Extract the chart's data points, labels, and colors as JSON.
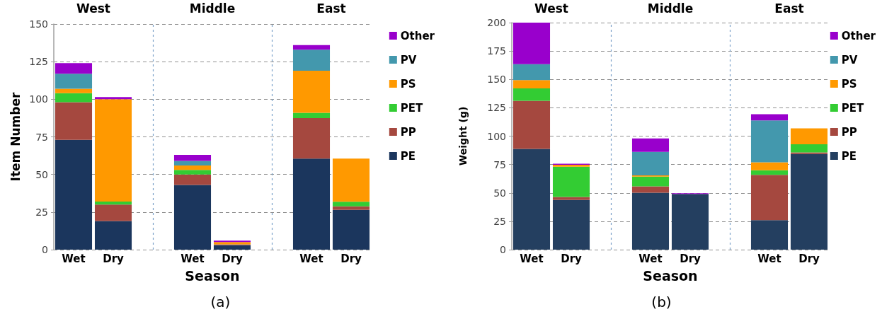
{
  "chart_data": [
    {
      "type": "bar",
      "title": "(a)",
      "xlabel": "Season",
      "ylabel": "Item Number",
      "annotations": [
        "West",
        "Middle",
        "East"
      ],
      "categories": [
        "Wet",
        "Dry",
        null,
        "Wet",
        "Dry",
        null,
        "Wet",
        "Dry"
      ],
      "stacked": true,
      "ylim": [
        0,
        150
      ],
      "yticks": [
        0,
        25,
        50,
        75,
        100,
        125,
        150
      ],
      "grid": true,
      "legend": "right",
      "series": [
        {
          "name": "PE",
          "color": "#1b365d",
          "values": [
            73,
            19,
            null,
            43,
            3,
            null,
            60.5,
            26.5
          ]
        },
        {
          "name": "PP",
          "color": "#a5483f",
          "values": [
            25,
            11,
            null,
            7,
            0.5,
            null,
            27,
            2.3
          ]
        },
        {
          "name": "PET",
          "color": "#33cc33",
          "values": [
            6,
            2,
            null,
            3,
            null,
            null,
            3.5,
            3
          ]
        },
        {
          "name": "PS",
          "color": "#ff9900",
          "values": [
            3,
            68,
            null,
            3,
            1.5,
            null,
            28,
            28.7
          ]
        },
        {
          "name": "PV",
          "color": "#4398ad",
          "values": [
            10,
            null,
            null,
            3,
            null,
            null,
            14,
            null
          ]
        },
        {
          "name": "Other",
          "color": "#9900cc",
          "values": [
            7,
            1.5,
            null,
            4,
            1,
            null,
            3,
            null
          ]
        }
      ]
    },
    {
      "type": "bar",
      "title": "(b)",
      "xlabel": "Season",
      "ylabel": "Weight (g)",
      "annotations": [
        "West",
        "Middle",
        "East"
      ],
      "categories": [
        "Wet",
        "Dry",
        null,
        "Wet",
        "Dry",
        null,
        "Wet",
        "Dry"
      ],
      "stacked": true,
      "ylim": [
        0,
        200
      ],
      "yticks": [
        0,
        25,
        50,
        75,
        100,
        125,
        150,
        175,
        200
      ],
      "grid": true,
      "legend": "right",
      "series": [
        {
          "name": "PE",
          "color": "#243f60",
          "values": [
            88.8,
            43.7,
            null,
            50.1,
            49.1,
            null,
            26,
            84.2
          ]
        },
        {
          "name": "PP",
          "color": "#a5483f",
          "values": [
            42.4,
            2.7,
            null,
            5.6,
            null,
            null,
            39.9,
            1.5
          ]
        },
        {
          "name": "PET",
          "color": "#33cc33",
          "values": [
            10.8,
            26.6,
            null,
            8.7,
            null,
            null,
            4,
            7.2
          ]
        },
        {
          "name": "PS",
          "color": "#ff9900",
          "values": [
            7.3,
            1.8,
            null,
            1,
            null,
            null,
            7,
            14
          ]
        },
        {
          "name": "PV",
          "color": "#4398ad",
          "values": [
            14.1,
            null,
            null,
            20.8,
            null,
            null,
            37,
            null
          ]
        },
        {
          "name": "Other",
          "color": "#9900cc",
          "values": [
            36.6,
            0.9,
            null,
            11.8,
            0.6,
            null,
            5.4,
            null
          ]
        }
      ]
    }
  ]
}
